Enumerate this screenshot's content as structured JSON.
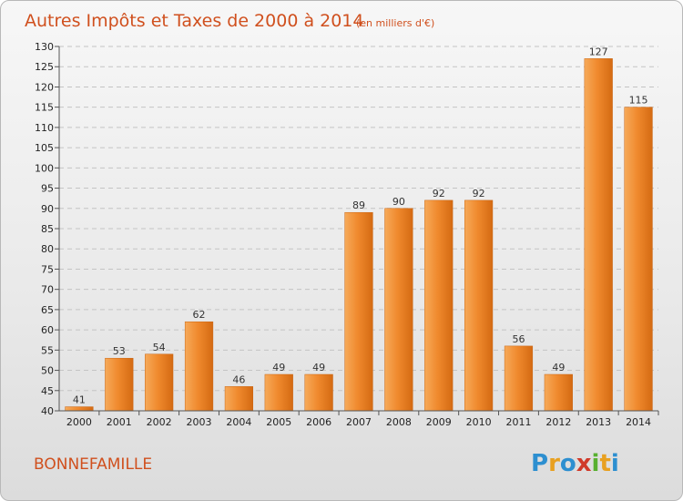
{
  "chart_data": {
    "type": "bar",
    "title": "Autres Impôts et Taxes de 2000 à 2014",
    "subtitle": "(en milliers d'€)",
    "categories": [
      "2000",
      "2001",
      "2002",
      "2003",
      "2004",
      "2005",
      "2006",
      "2007",
      "2008",
      "2009",
      "2010",
      "2011",
      "2012",
      "2013",
      "2014"
    ],
    "values": [
      41,
      53,
      54,
      62,
      46,
      49,
      49,
      89,
      90,
      92,
      92,
      56,
      49,
      127,
      115
    ],
    "ylim": [
      40,
      130
    ],
    "yticks": [
      40,
      45,
      50,
      55,
      60,
      65,
      70,
      75,
      80,
      85,
      90,
      95,
      100,
      105,
      110,
      115,
      120,
      125,
      130
    ],
    "grid": true,
    "bar_color": "#f08a2e",
    "bar_color_light": "#f6aa5a",
    "bar_color_dark": "#d46a12",
    "title_color": "#d0501e"
  },
  "commune_name": "BONNEFAMILLE",
  "logo": {
    "letters": [
      "P",
      "r",
      "o",
      "x",
      "i",
      "t",
      "i"
    ],
    "colors": [
      "#2d8fd0",
      "#e8a020",
      "#2d8fd0",
      "#d03a2a",
      "#58b030",
      "#e8a020",
      "#2d8fd0"
    ]
  }
}
